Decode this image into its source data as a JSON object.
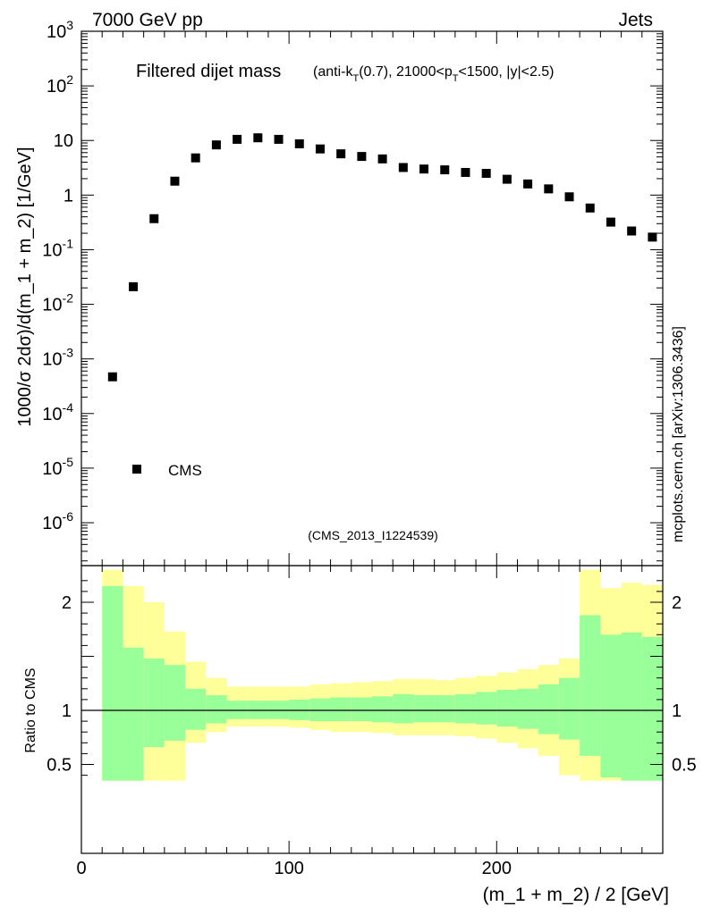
{
  "header": {
    "energy_label": "7000 GeV pp",
    "category_label": "Jets",
    "side_label": "mcplots.cern.ch [arXiv:1306.3436]",
    "analysis_label": "(CMS_2013_I1224539)"
  },
  "colors": {
    "marker": "#000000",
    "band_inner": "#99ff99",
    "band_outer": "#ffff99",
    "analysis_text": "#999999"
  },
  "chart_data": [
    {
      "type": "scatter",
      "title_main": "Filtered dijet mass",
      "title_sub_parts": [
        "(anti-k",
        "T",
        "(0.7), 21000<p",
        "T",
        "<1500, |y|<2.5)"
      ],
      "ylabel": "1000/σ 2dσ)/d(m_1 + m_2) [1/GeV]",
      "yscale": "log",
      "ylim": [
        3e-07,
        1000
      ],
      "xlim": [
        0,
        280
      ],
      "y_ticks": [
        {
          "v": 1000,
          "base": "10",
          "exp": "3"
        },
        {
          "v": 100,
          "base": "10",
          "exp": "2"
        },
        {
          "v": 10,
          "base": "10",
          "exp": ""
        },
        {
          "v": 1,
          "base": "1",
          "exp": ""
        },
        {
          "v": 0.1,
          "base": "10",
          "exp": "-1"
        },
        {
          "v": 0.01,
          "base": "10",
          "exp": "-2"
        },
        {
          "v": 0.001,
          "base": "10",
          "exp": "-3"
        },
        {
          "v": 0.0001,
          "base": "10",
          "exp": "-4"
        },
        {
          "v": 1e-05,
          "base": "10",
          "exp": "-5"
        },
        {
          "v": 1e-06,
          "base": "10",
          "exp": "-6"
        }
      ],
      "legend": {
        "label": "CMS",
        "position": "bottom-left"
      },
      "series": [
        {
          "name": "CMS",
          "x": [
            15,
            25,
            35,
            45,
            55,
            65,
            75,
            85,
            95,
            105,
            115,
            125,
            135,
            145,
            155,
            165,
            175,
            185,
            195,
            205,
            215,
            225,
            235,
            245,
            255,
            265,
            275
          ],
          "y": [
            0.00047,
            0.021,
            0.37,
            1.8,
            4.8,
            8.3,
            10.5,
            11.2,
            10.5,
            8.7,
            7.0,
            5.7,
            5.1,
            4.6,
            3.2,
            3.0,
            2.9,
            2.6,
            2.5,
            1.95,
            1.6,
            1.3,
            0.93,
            0.58,
            0.32,
            0.22,
            0.17
          ]
        }
      ]
    },
    {
      "type": "area",
      "ylabel": "Ratio to CMS",
      "xlabel": "(m_1 + m_2) / 2 [GeV]",
      "ylim": [
        0.35,
        2.3
      ],
      "xlim": [
        0,
        280
      ],
      "x_ticks": [
        0,
        100,
        200
      ],
      "y_ticks_left": [
        0.5,
        1,
        2
      ],
      "y_ticks_right": [
        0.5,
        1,
        2
      ],
      "reference_line": 1,
      "bins": [
        {
          "lo": 10,
          "hi": 20,
          "in_lo": 0.35,
          "in_hi": 2.15,
          "out_lo": 0.35,
          "out_hi": 2.3
        },
        {
          "lo": 20,
          "hi": 30,
          "in_lo": 0.35,
          "in_hi": 1.58,
          "out_lo": 0.35,
          "out_hi": 2.15
        },
        {
          "lo": 30,
          "hi": 40,
          "in_lo": 0.35,
          "in_hi": 1.48,
          "out_lo": 0.35,
          "out_hi": 2.0
        },
        {
          "lo": 40,
          "hi": 50,
          "in_lo": 0.35,
          "in_hi": 1.42,
          "out_lo": 0.35,
          "out_hi": 1.73
        },
        {
          "lo": 50,
          "hi": 60,
          "in_lo": 0.35,
          "in_hi": 1.2,
          "out_lo": 0.35,
          "out_hi": 1.45
        },
        {
          "lo": 60,
          "hi": 70,
          "in_lo": 0.35,
          "in_hi": 1.14,
          "out_lo": 0.35,
          "out_hi": 1.3
        },
        {
          "lo": 70,
          "hi": 80,
          "in_lo": 0.35,
          "in_hi": 1.09,
          "out_lo": 0.35,
          "out_hi": 1.22
        },
        {
          "lo": 80,
          "hi": 90,
          "in_lo": 0.35,
          "in_hi": 1.09,
          "out_lo": 0.35,
          "out_hi": 1.22
        },
        {
          "lo": 90,
          "hi": 100,
          "in_lo": 0.35,
          "in_hi": 1.09,
          "out_lo": 0.35,
          "out_hi": 1.22
        },
        {
          "lo": 100,
          "hi": 110,
          "in_lo": 0.35,
          "in_hi": 1.1,
          "out_lo": 0.35,
          "out_hi": 1.22
        },
        {
          "lo": 110,
          "hi": 120,
          "in_lo": 0.35,
          "in_hi": 1.11,
          "out_lo": 0.35,
          "out_hi": 1.24
        },
        {
          "lo": 120,
          "hi": 130,
          "in_lo": 0.35,
          "in_hi": 1.12,
          "out_lo": 0.35,
          "out_hi": 1.25
        },
        {
          "lo": 130,
          "hi": 140,
          "in_lo": 0.35,
          "in_hi": 1.12,
          "out_lo": 0.35,
          "out_hi": 1.26
        },
        {
          "lo": 140,
          "hi": 150,
          "in_lo": 0.35,
          "in_hi": 1.13,
          "out_lo": 0.35,
          "out_hi": 1.27
        },
        {
          "lo": 150,
          "hi": 160,
          "in_lo": 0.35,
          "in_hi": 1.15,
          "out_lo": 0.35,
          "out_hi": 1.29
        },
        {
          "lo": 160,
          "hi": 170,
          "in_lo": 0.35,
          "in_hi": 1.14,
          "out_lo": 0.35,
          "out_hi": 1.29
        },
        {
          "lo": 170,
          "hi": 180,
          "in_lo": 0.35,
          "in_hi": 1.14,
          "out_lo": 0.35,
          "out_hi": 1.28
        },
        {
          "lo": 180,
          "hi": 190,
          "in_lo": 0.35,
          "in_hi": 1.15,
          "out_lo": 0.35,
          "out_hi": 1.3
        },
        {
          "lo": 190,
          "hi": 200,
          "in_lo": 0.35,
          "in_hi": 1.17,
          "out_lo": 0.35,
          "out_hi": 1.32
        },
        {
          "lo": 200,
          "hi": 210,
          "in_lo": 0.35,
          "in_hi": 1.19,
          "out_lo": 0.35,
          "out_hi": 1.35
        },
        {
          "lo": 210,
          "hi": 220,
          "in_lo": 0.35,
          "in_hi": 1.2,
          "out_lo": 0.35,
          "out_hi": 1.38
        },
        {
          "lo": 220,
          "hi": 230,
          "in_lo": 0.35,
          "in_hi": 1.24,
          "out_lo": 0.35,
          "out_hi": 1.42
        },
        {
          "lo": 230,
          "hi": 240,
          "in_lo": 0.35,
          "in_hi": 1.3,
          "out_lo": 0.35,
          "out_hi": 1.48
        },
        {
          "lo": 240,
          "hi": 250,
          "in_lo": 0.35,
          "in_hi": 1.88,
          "out_lo": 0.35,
          "out_hi": 2.3
        },
        {
          "lo": 250,
          "hi": 260,
          "in_lo": 0.35,
          "in_hi": 1.7,
          "out_lo": 0.35,
          "out_hi": 2.13
        },
        {
          "lo": 260,
          "hi": 270,
          "in_lo": 0.35,
          "in_hi": 1.72,
          "out_lo": 0.35,
          "out_hi": 2.18
        },
        {
          "lo": 270,
          "hi": 280,
          "in_lo": 0.35,
          "in_hi": 1.68,
          "out_lo": 0.35,
          "out_hi": 2.16
        }
      ],
      "bins_lower": [
        {
          "lo": 10,
          "hi": 20,
          "in_lo": 0.35,
          "out_lo": 0.35
        },
        {
          "lo": 20,
          "hi": 30,
          "in_lo": 0.35,
          "out_lo": 0.35
        },
        {
          "lo": 30,
          "hi": 40,
          "in_lo": 0.66,
          "out_lo": 0.35
        },
        {
          "lo": 40,
          "hi": 50,
          "in_lo": 0.72,
          "out_lo": 0.35
        },
        {
          "lo": 50,
          "hi": 60,
          "in_lo": 0.82,
          "out_lo": 0.7
        },
        {
          "lo": 60,
          "hi": 70,
          "in_lo": 0.88,
          "out_lo": 0.8
        },
        {
          "lo": 70,
          "hi": 80,
          "in_lo": 0.92,
          "out_lo": 0.85
        },
        {
          "lo": 80,
          "hi": 90,
          "in_lo": 0.92,
          "out_lo": 0.85
        },
        {
          "lo": 90,
          "hi": 100,
          "in_lo": 0.92,
          "out_lo": 0.85
        },
        {
          "lo": 100,
          "hi": 110,
          "in_lo": 0.91,
          "out_lo": 0.84
        },
        {
          "lo": 110,
          "hi": 120,
          "in_lo": 0.9,
          "out_lo": 0.82
        },
        {
          "lo": 120,
          "hi": 130,
          "in_lo": 0.9,
          "out_lo": 0.8
        },
        {
          "lo": 130,
          "hi": 140,
          "in_lo": 0.9,
          "out_lo": 0.8
        },
        {
          "lo": 140,
          "hi": 150,
          "in_lo": 0.89,
          "out_lo": 0.79
        },
        {
          "lo": 150,
          "hi": 160,
          "in_lo": 0.88,
          "out_lo": 0.77
        },
        {
          "lo": 160,
          "hi": 170,
          "in_lo": 0.89,
          "out_lo": 0.77
        },
        {
          "lo": 170,
          "hi": 180,
          "in_lo": 0.89,
          "out_lo": 0.77
        },
        {
          "lo": 180,
          "hi": 190,
          "in_lo": 0.88,
          "out_lo": 0.76
        },
        {
          "lo": 190,
          "hi": 200,
          "in_lo": 0.87,
          "out_lo": 0.74
        },
        {
          "lo": 200,
          "hi": 210,
          "in_lo": 0.85,
          "out_lo": 0.7
        },
        {
          "lo": 210,
          "hi": 220,
          "in_lo": 0.83,
          "out_lo": 0.65
        },
        {
          "lo": 220,
          "hi": 230,
          "in_lo": 0.78,
          "out_lo": 0.58
        },
        {
          "lo": 230,
          "hi": 240,
          "in_lo": 0.73,
          "out_lo": 0.4
        },
        {
          "lo": 240,
          "hi": 250,
          "in_lo": 0.58,
          "out_lo": 0.35
        },
        {
          "lo": 250,
          "hi": 260,
          "in_lo": 0.38,
          "out_lo": 0.35
        },
        {
          "lo": 260,
          "hi": 270,
          "in_lo": 0.35,
          "out_lo": 0.35
        },
        {
          "lo": 270,
          "hi": 280,
          "in_lo": 0.35,
          "out_lo": 0.35
        }
      ]
    }
  ]
}
